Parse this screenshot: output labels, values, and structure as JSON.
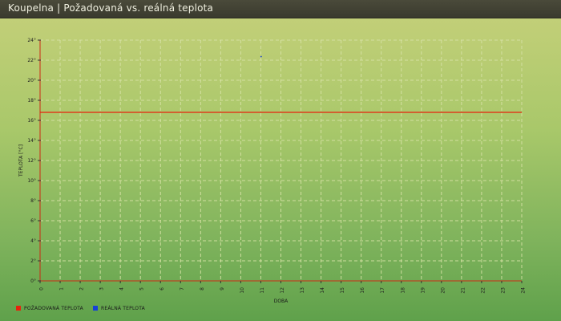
{
  "title": "Koupelna | Požadovaná vs. reálná teplota",
  "colors": {
    "required": "#e8220c",
    "real": "#1540d8",
    "grid": "#d7e2a6",
    "axis": "#cc2a14"
  },
  "chart_data": {
    "type": "line",
    "xlabel": "DOBA",
    "ylabel": "TEPLOTA [°C]",
    "xlim": [
      0,
      24
    ],
    "ylim": [
      0,
      24
    ],
    "x_ticks": [
      "0",
      "1",
      "2",
      "3",
      "4",
      "5",
      "6",
      "7",
      "8",
      "9",
      "10",
      "11",
      "12",
      "13",
      "14",
      "15",
      "16",
      "17",
      "18",
      "19",
      "20",
      "21",
      "22",
      "23",
      "24"
    ],
    "y_ticks": [
      "0°",
      "2°",
      "4°",
      "6°",
      "8°",
      "10°",
      "12°",
      "14°",
      "16°",
      "18°",
      "20°",
      "22°",
      "24°"
    ],
    "grid": true,
    "legend_position": "bottom-left",
    "series": [
      {
        "name": "POŽADOVANÁ TEPLOTA",
        "x": [
          0,
          24
        ],
        "y": [
          16.8,
          16.8
        ]
      },
      {
        "name": "REÁLNÁ TEPLOTA",
        "x": [
          11,
          11.03
        ],
        "y": [
          22.4,
          22.3
        ]
      }
    ]
  }
}
